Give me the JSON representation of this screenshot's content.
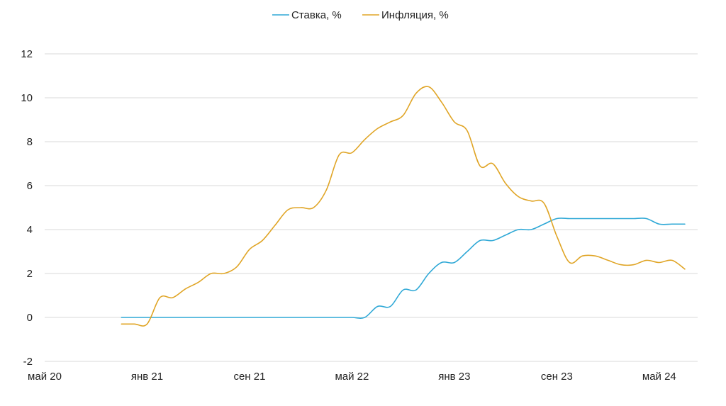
{
  "chart_data": {
    "type": "line",
    "legend_position": "top-center",
    "grid": "horizontal",
    "ylim": [
      -2,
      12
    ],
    "yticks": [
      -2,
      0,
      2,
      4,
      6,
      8,
      10,
      12
    ],
    "xlim": [
      "2020-05",
      "2024-08"
    ],
    "xticks": [
      {
        "label": "май 20",
        "date": "2020-05"
      },
      {
        "label": "янв 21",
        "date": "2021-01"
      },
      {
        "label": "сен 21",
        "date": "2021-09"
      },
      {
        "label": "май 22",
        "date": "2022-05"
      },
      {
        "label": "янв 23",
        "date": "2023-01"
      },
      {
        "label": "сен 23",
        "date": "2023-09"
      },
      {
        "label": "май 24",
        "date": "2024-05"
      }
    ],
    "x": [
      "2020-11",
      "2020-12",
      "2021-01",
      "2021-02",
      "2021-03",
      "2021-04",
      "2021-05",
      "2021-06",
      "2021-07",
      "2021-08",
      "2021-09",
      "2021-10",
      "2021-11",
      "2021-12",
      "2022-01",
      "2022-02",
      "2022-03",
      "2022-04",
      "2022-05",
      "2022-06",
      "2022-07",
      "2022-08",
      "2022-09",
      "2022-10",
      "2022-11",
      "2022-12",
      "2023-01",
      "2023-02",
      "2023-03",
      "2023-04",
      "2023-05",
      "2023-06",
      "2023-07",
      "2023-08",
      "2023-09",
      "2023-10",
      "2023-11",
      "2023-12",
      "2024-01",
      "2024-02",
      "2024-03",
      "2024-04",
      "2024-05",
      "2024-06",
      "2024-07"
    ],
    "series": [
      {
        "name": "Ставка, %",
        "color": "#2ea8d6",
        "values": [
          0,
          0,
          0,
          0,
          0,
          0,
          0,
          0,
          0,
          0,
          0,
          0,
          0,
          0,
          0,
          0,
          0,
          0,
          0,
          0,
          0.5,
          0.5,
          1.25,
          1.25,
          2.0,
          2.5,
          2.5,
          3.0,
          3.5,
          3.5,
          3.75,
          4.0,
          4.0,
          4.25,
          4.5,
          4.5,
          4.5,
          4.5,
          4.5,
          4.5,
          4.5,
          4.5,
          4.25,
          4.25,
          4.25
        ]
      },
      {
        "name": "Инфляция, %",
        "color": "#e0a526",
        "values": [
          -0.3,
          -0.3,
          -0.3,
          0.9,
          0.9,
          1.3,
          1.6,
          2.0,
          2.0,
          2.3,
          3.1,
          3.5,
          4.2,
          4.9,
          5.0,
          5.0,
          5.8,
          7.4,
          7.5,
          8.1,
          8.6,
          8.9,
          9.2,
          10.2,
          10.5,
          9.8,
          8.9,
          8.5,
          6.9,
          7.0,
          6.1,
          5.5,
          5.3,
          5.2,
          3.7,
          2.5,
          2.8,
          2.8,
          2.6,
          2.4,
          2.4,
          2.6,
          2.5,
          2.6,
          2.2
        ]
      }
    ]
  }
}
